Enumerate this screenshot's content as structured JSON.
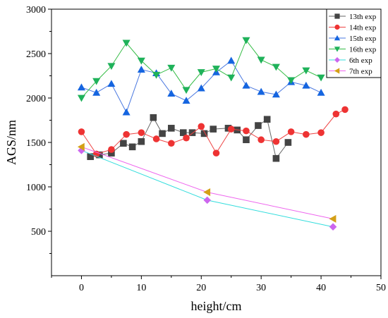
{
  "chart_data": {
    "type": "line",
    "xlabel": "height/cm",
    "ylabel": "AGS/nm",
    "xlim": [
      -5,
      50
    ],
    "ylim": [
      0,
      3000
    ],
    "xticks": [
      0,
      10,
      20,
      30,
      40,
      50
    ],
    "yticks": [
      500,
      1000,
      1500,
      2000,
      2500,
      3000
    ],
    "x_tick_labels": [
      "0",
      "10",
      "20",
      "30",
      "40",
      "50"
    ],
    "y_tick_labels": [
      "500",
      "1000",
      "1500",
      "2000",
      "2500",
      "3000"
    ],
    "legend_position": "top-right",
    "grid": false,
    "series": [
      {
        "name": "13th exp",
        "marker": "square",
        "color": "#444444",
        "line_color": "#666666",
        "points": [
          [
            1.5,
            1340
          ],
          [
            3,
            1360
          ],
          [
            5,
            1380
          ],
          [
            7,
            1490
          ],
          [
            8.5,
            1450
          ],
          [
            10,
            1510
          ],
          [
            12,
            1780
          ],
          [
            13.5,
            1600
          ],
          [
            15,
            1660
          ],
          [
            17,
            1610
          ],
          [
            18.5,
            1610
          ],
          [
            20.5,
            1600
          ],
          [
            22,
            1650
          ],
          [
            24.5,
            1660
          ],
          [
            26,
            1640
          ],
          [
            27.5,
            1530
          ],
          [
            29.5,
            1690
          ],
          [
            31,
            1760
          ],
          [
            32.5,
            1320
          ],
          [
            34.5,
            1500
          ]
        ]
      },
      {
        "name": "14th exp",
        "marker": "circle",
        "color": "#ee3333",
        "line_color": "#ee4444",
        "points": [
          [
            0,
            1620
          ],
          [
            2.5,
            1370
          ],
          [
            5,
            1420
          ],
          [
            7.5,
            1590
          ],
          [
            10,
            1610
          ],
          [
            12.5,
            1540
          ],
          [
            15,
            1490
          ],
          [
            17.5,
            1550
          ],
          [
            20,
            1680
          ],
          [
            22.5,
            1380
          ],
          [
            25,
            1650
          ],
          [
            27.5,
            1630
          ],
          [
            30,
            1530
          ],
          [
            32.5,
            1510
          ],
          [
            35,
            1620
          ],
          [
            37.5,
            1590
          ],
          [
            40,
            1610
          ],
          [
            42.5,
            1820
          ],
          [
            44,
            1870
          ]
        ]
      },
      {
        "name": "15th exp",
        "marker": "triangle-up",
        "color": "#1565e0",
        "line_color": "#4a78e0",
        "points": [
          [
            0,
            2120
          ],
          [
            2.5,
            2060
          ],
          [
            5,
            2160
          ],
          [
            7.5,
            1840
          ],
          [
            10,
            2320
          ],
          [
            12.5,
            2280
          ],
          [
            15,
            2050
          ],
          [
            17.5,
            1970
          ],
          [
            20,
            2110
          ],
          [
            22.5,
            2290
          ],
          [
            25,
            2420
          ],
          [
            27.5,
            2140
          ],
          [
            30,
            2070
          ],
          [
            32.5,
            2040
          ],
          [
            35,
            2180
          ],
          [
            37.5,
            2140
          ],
          [
            40,
            2060
          ]
        ]
      },
      {
        "name": "16th exp",
        "marker": "triangle-down",
        "color": "#1fb25a",
        "line_color": "#33bb44",
        "points": [
          [
            0,
            2000
          ],
          [
            2.5,
            2190
          ],
          [
            5,
            2360
          ],
          [
            7.5,
            2620
          ],
          [
            10,
            2420
          ],
          [
            12.5,
            2260
          ],
          [
            15,
            2340
          ],
          [
            17.5,
            2090
          ],
          [
            20,
            2290
          ],
          [
            22.5,
            2330
          ],
          [
            25,
            2230
          ],
          [
            27.5,
            2650
          ],
          [
            30,
            2430
          ],
          [
            32.5,
            2350
          ],
          [
            35,
            2200
          ],
          [
            37.5,
            2310
          ],
          [
            40,
            2230
          ]
        ]
      },
      {
        "name": "6th exp",
        "marker": "diamond",
        "color": "#cc66ee",
        "line_color": "#33dddd",
        "points": [
          [
            0,
            1410
          ],
          [
            21,
            850
          ],
          [
            42,
            550
          ]
        ]
      },
      {
        "name": "7th exp",
        "marker": "triangle-left",
        "color": "#d4a017",
        "line_color": "#ee66ee",
        "points": [
          [
            0,
            1450
          ],
          [
            21,
            940
          ],
          [
            42,
            640
          ]
        ]
      }
    ]
  }
}
